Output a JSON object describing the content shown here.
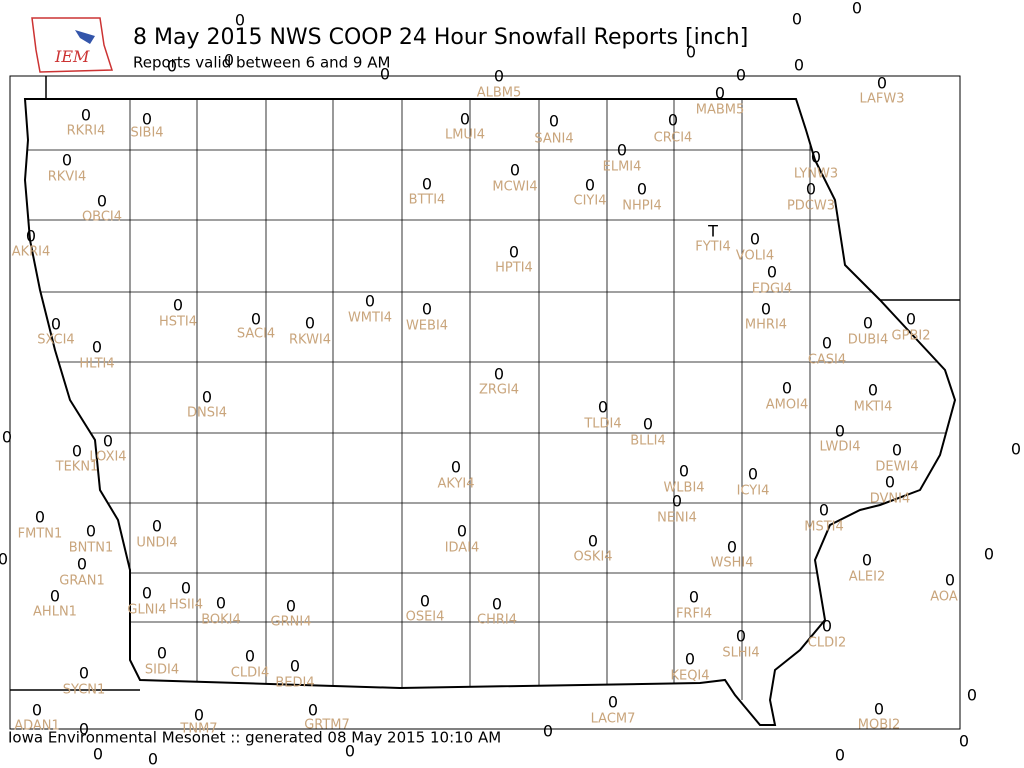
{
  "logo": "IEM",
  "title": "8 May 2015 NWS COOP 24 Hour Snowfall Reports [inch]",
  "subtitle": "Reports valid between 6 and 9 AM",
  "footer": "Iowa Environmental Mesonet :: generated 08 May 2015 10:10 AM",
  "stations": [
    {
      "name": "ALBM5",
      "value": 0
    },
    {
      "name": "MABM5",
      "value": 0
    },
    {
      "name": "LAFW3",
      "value": 0
    },
    {
      "name": "RKRI4",
      "value": 0
    },
    {
      "name": "SIBI4",
      "value": 0
    },
    {
      "name": "LMUI4",
      "value": 0
    },
    {
      "name": "SANI4",
      "value": 0
    },
    {
      "name": "CRCI4",
      "value": 0
    },
    {
      "name": "RKVI4",
      "value": 0
    },
    {
      "name": "ELMI4",
      "value": 0
    },
    {
      "name": "LYNW3",
      "value": 0
    },
    {
      "name": "MCWI4",
      "value": 0
    },
    {
      "name": "CIYI4",
      "value": 0
    },
    {
      "name": "NHPI4",
      "value": 0
    },
    {
      "name": "BTTI4",
      "value": 0
    },
    {
      "name": "OBCI4",
      "value": 0
    },
    {
      "name": "PDCW3",
      "value": 0
    },
    {
      "name": "FYTI4",
      "value": "T"
    },
    {
      "name": "VOLI4",
      "value": 0
    },
    {
      "name": "AKRI4",
      "value": 0
    },
    {
      "name": "HPTI4",
      "value": 0
    },
    {
      "name": "EDGI4",
      "value": 0
    },
    {
      "name": "HSTI4",
      "value": 0
    },
    {
      "name": "SACI4",
      "value": 0
    },
    {
      "name": "RKWI4",
      "value": 0
    },
    {
      "name": "WMTI4",
      "value": 0
    },
    {
      "name": "WEBI4",
      "value": 0
    },
    {
      "name": "MHRI4",
      "value": 0
    },
    {
      "name": "SXCI4",
      "value": 0
    },
    {
      "name": "DUBI4",
      "value": 0
    },
    {
      "name": "GPBI2",
      "value": 0
    },
    {
      "name": "CASI4",
      "value": 0
    },
    {
      "name": "HLTI4",
      "value": 0
    },
    {
      "name": "ZRGI4",
      "value": 0
    },
    {
      "name": "AMOI4",
      "value": 0
    },
    {
      "name": "MKTI4",
      "value": 0
    },
    {
      "name": "DNSI4",
      "value": 0
    },
    {
      "name": "TLDI4",
      "value": 0
    },
    {
      "name": "BLLI4",
      "value": 0
    },
    {
      "name": "LWDI4",
      "value": 0
    },
    {
      "name": "LOXI4",
      "value": 0
    },
    {
      "name": "TEKN1",
      "value": 0
    },
    {
      "name": "DEWI4",
      "value": 0
    },
    {
      "name": "AKYI4",
      "value": 0
    },
    {
      "name": "WLBI4",
      "value": 0
    },
    {
      "name": "ICYI4",
      "value": 0
    },
    {
      "name": "DVNI4",
      "value": 0
    },
    {
      "name": "NENI4",
      "value": 0
    },
    {
      "name": "MSTI4",
      "value": 0
    },
    {
      "name": "FMTN1",
      "value": 0
    },
    {
      "name": "UNDI4",
      "value": 0
    },
    {
      "name": "BNTN1",
      "value": 0
    },
    {
      "name": "IDAI4",
      "value": 0
    },
    {
      "name": "OSKI4",
      "value": 0
    },
    {
      "name": "WSHI4",
      "value": 0
    },
    {
      "name": "ALEI2",
      "value": 0
    },
    {
      "name": "GRAN1",
      "value": 0
    },
    {
      "name": "AOA",
      "value": 0
    },
    {
      "name": "AHLN1",
      "value": 0
    },
    {
      "name": "HSII4",
      "value": 0
    },
    {
      "name": "GLNI4",
      "value": 0
    },
    {
      "name": "BOKI4",
      "value": 0
    },
    {
      "name": "GRNI4",
      "value": 0
    },
    {
      "name": "OSEI4",
      "value": 0
    },
    {
      "name": "CHRI4",
      "value": 0
    },
    {
      "name": "FRFI4",
      "value": 0
    },
    {
      "name": "SLHI4",
      "value": 0
    },
    {
      "name": "CLDI2",
      "value": 0
    },
    {
      "name": "SIDI4",
      "value": 0
    },
    {
      "name": "CLDI4",
      "value": 0
    },
    {
      "name": "BEDI4",
      "value": 0
    },
    {
      "name": "KEQI4",
      "value": 0
    },
    {
      "name": "SYCN1",
      "value": 0
    },
    {
      "name": "LACM7",
      "value": 0
    },
    {
      "name": "ADAN1",
      "value": 0
    },
    {
      "name": "MOBI2",
      "value": 0
    },
    {
      "name": "TNM7",
      "value": 0
    },
    {
      "name": "GRTM7",
      "value": 0
    }
  ],
  "unlabeled_values": [
    0,
    0,
    0,
    0,
    0,
    0,
    0,
    0,
    0,
    0,
    0,
    0,
    0,
    0,
    0,
    0,
    0,
    0,
    0,
    0,
    0
  ]
}
